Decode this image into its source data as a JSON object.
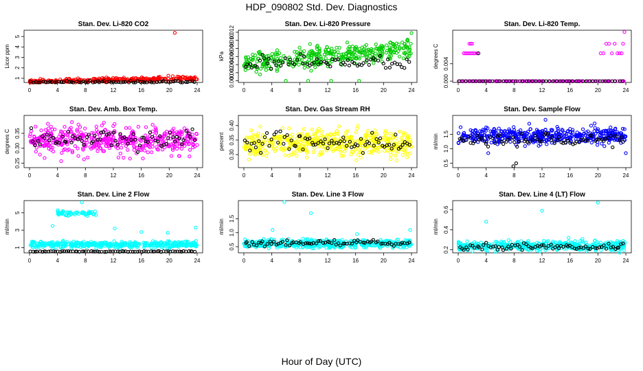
{
  "title": "HDP_090802  Std. Dev. Diagnostics",
  "xlabel": "Hour of Day (UTC)",
  "chart_data": [
    {
      "type": "scatter",
      "title": "Stan. Dev. Li-820 CO2",
      "ylabel": "Licor ppm",
      "xlim": [
        0,
        24
      ],
      "xticks": [
        0,
        4,
        8,
        12,
        16,
        20,
        24
      ],
      "xtick_labels": [
        "0",
        "4",
        "8",
        "12",
        "16",
        "20",
        "24"
      ],
      "ylim": [
        0.6,
        5.6
      ],
      "yticks": [
        1,
        2,
        3,
        4,
        5
      ],
      "ytick_labels": [
        "1",
        "2",
        "3",
        "4",
        "5"
      ],
      "color": "#ff0000",
      "cloud": {
        "base": 0.7,
        "spread": 0.2,
        "trend": 0.15,
        "n": 300
      },
      "outliers": [
        [
          20.8,
          5.35
        ],
        [
          18.5,
          1.1
        ],
        [
          20.5,
          1.2
        ],
        [
          22.0,
          1.15
        ]
      ],
      "black": {
        "base": 0.65,
        "spread": 0.12,
        "n": 70
      }
    },
    {
      "type": "scatter",
      "title": "Stan. Dev. Li-820 Pressure",
      "ylabel": "kPa",
      "xlim": [
        0,
        24
      ],
      "xticks": [
        0,
        4,
        8,
        12,
        16,
        20,
        24
      ],
      "xtick_labels": [
        "0",
        "4",
        "8",
        "12",
        "16",
        "20",
        "24"
      ],
      "ylim": [
        -0.0004,
        0.0125
      ],
      "yticks": [
        0,
        0.002,
        0.004,
        0.006,
        0.008,
        0.01,
        0.012
      ],
      "ytick_labels": [
        "0.000",
        "0.002",
        "0.004",
        "0.006",
        "0.008",
        "0.010",
        "0.012"
      ],
      "color": "#00cc00",
      "cloud": {
        "base": 0.0043,
        "spread": 0.0023,
        "trend": 0.0018,
        "n": 380
      },
      "outliers": [
        [
          24,
          0.0118
        ],
        [
          9.2,
          0.0
        ],
        [
          12.5,
          0.0
        ],
        [
          16.5,
          0.0
        ],
        [
          6,
          0.0
        ],
        [
          21,
          0.0095
        ]
      ],
      "black": {
        "base": 0.0045,
        "spread": 0.0015,
        "n": 70
      }
    },
    {
      "type": "scatter",
      "title": "Stan. Dev. Li-820 Temp.",
      "ylabel": "degrees C",
      "xlim": [
        0,
        24
      ],
      "xticks": [
        0,
        4,
        8,
        12,
        16,
        20,
        24
      ],
      "xtick_labels": [
        "0",
        "4",
        "8",
        "12",
        "16",
        "20",
        "24"
      ],
      "ylim": [
        -0.0003,
        0.0117
      ],
      "yticks": [
        0,
        0.004
      ],
      "ytick_labels": [
        "0.000",
        "0.004"
      ],
      "color": "#ff00ff",
      "cloud": {
        "base": 0.0,
        "spread": 0.0,
        "trend": 0,
        "n": 120
      },
      "outliers": [
        [
          0.8,
          0.0064
        ],
        [
          1.0,
          0.0064
        ],
        [
          1.2,
          0.0064
        ],
        [
          1.4,
          0.0064
        ],
        [
          1.6,
          0.0064
        ],
        [
          1.8,
          0.0064
        ],
        [
          2.0,
          0.0064
        ],
        [
          2.2,
          0.0064
        ],
        [
          2.4,
          0.0064
        ],
        [
          1.6,
          0.0086
        ],
        [
          1.8,
          0.0086
        ],
        [
          2.0,
          0.0086
        ],
        [
          2.7,
          0.0064
        ],
        [
          20.4,
          0.0064
        ],
        [
          20.8,
          0.0064
        ],
        [
          21.2,
          0.0086
        ],
        [
          21.6,
          0.0086
        ],
        [
          22.0,
          0.0064
        ],
        [
          22.4,
          0.0086
        ],
        [
          22.8,
          0.0064
        ],
        [
          23.1,
          0.0064
        ],
        [
          23.4,
          0.0064
        ],
        [
          23.6,
          0.0086
        ],
        [
          23.8,
          0.0113
        ]
      ],
      "black": {
        "base": 0.0,
        "spread": 0.0,
        "n": 50
      },
      "black_extra": [
        [
          2.9,
          0.0064
        ]
      ]
    },
    {
      "type": "scatter",
      "title": "Stan. Dev. Amb. Box Temp.",
      "ylabel": "degrees C",
      "xlim": [
        0,
        24
      ],
      "xticks": [
        0,
        4,
        8,
        12,
        16,
        20,
        24
      ],
      "xtick_labels": [
        "0",
        "4",
        "8",
        "12",
        "16",
        "20",
        "24"
      ],
      "ylim": [
        0.235,
        0.41
      ],
      "yticks": [
        0.25,
        0.3,
        0.35
      ],
      "ytick_labels": [
        "0.25",
        "0.30",
        "0.35"
      ],
      "color": "#ff00ff",
      "cloud": {
        "base": 0.325,
        "spread": 0.045,
        "trend": 0,
        "n": 480
      },
      "outliers": [],
      "black": {
        "base": 0.33,
        "spread": 0.03,
        "n": 75
      }
    },
    {
      "type": "scatter",
      "title": "Stan. Dev. Gas Stream RH",
      "ylabel": "percent",
      "xlim": [
        0,
        24
      ],
      "xticks": [
        0,
        4,
        8,
        12,
        16,
        20,
        24
      ],
      "xtick_labels": [
        "0",
        "4",
        "8",
        "12",
        "16",
        "20",
        "24"
      ],
      "ylim": [
        0.255,
        0.435
      ],
      "yticks": [
        0.3,
        0.35,
        0.4
      ],
      "ytick_labels": [
        "0.30",
        "0.35",
        "0.40"
      ],
      "color": "#ffff00",
      "cloud": {
        "base": 0.34,
        "spread": 0.045,
        "trend": 0,
        "n": 480
      },
      "outliers": [],
      "black": {
        "base": 0.34,
        "spread": 0.03,
        "n": 75
      }
    },
    {
      "type": "scatter",
      "title": "Stan. Dev. Sample Flow",
      "ylabel": "ml/min",
      "xlim": [
        0,
        24
      ],
      "xticks": [
        0,
        4,
        8,
        12,
        16,
        20,
        24
      ],
      "xtick_labels": [
        "0",
        "4",
        "8",
        "12",
        "16",
        "20",
        "24"
      ],
      "ylim": [
        0.35,
        2.15
      ],
      "yticks": [
        0.5,
        1.0,
        1.5
      ],
      "ytick_labels": [
        "0.5",
        "1.0",
        "1.5"
      ],
      "color": "#0000ff",
      "cloud": {
        "base": 1.45,
        "spread": 0.28,
        "trend": 0,
        "n": 480
      },
      "outliers": [
        [
          24,
          0.85
        ],
        [
          4.3,
          0.85
        ],
        [
          12.5,
          2.0
        ]
      ],
      "black": {
        "base": 1.3,
        "spread": 0.2,
        "n": 75
      },
      "black_extra": [
        [
          7.9,
          0.4
        ],
        [
          8.3,
          0.5
        ]
      ]
    },
    {
      "type": "scatter",
      "title": "Stan. Dev. Line 2 Flow",
      "ylabel": "ml/min",
      "xlim": [
        0,
        24
      ],
      "xticks": [
        0,
        4,
        8,
        12,
        16,
        20,
        24
      ],
      "xtick_labels": [
        "0",
        "4",
        "8",
        "12",
        "16",
        "20",
        "24"
      ],
      "ylim": [
        0.4,
        6.4
      ],
      "yticks": [
        1,
        3,
        5
      ],
      "ytick_labels": [
        "1",
        "3",
        "5"
      ],
      "color": "#00ffff",
      "cloud": {
        "base": 1.35,
        "spread": 0.35,
        "trend": 0,
        "n": 420
      },
      "outliers": [
        [
          3.3,
          3.5
        ],
        [
          12.2,
          3.2
        ],
        [
          16.0,
          2.8
        ],
        [
          19.8,
          2.7
        ],
        [
          23.8,
          3.3
        ],
        [
          7.5,
          6.2
        ]
      ],
      "cluster": {
        "x0": 4.0,
        "x1": 9.5,
        "base": 4.9,
        "spread": 0.5,
        "n": 60
      },
      "black": {
        "base": 0.55,
        "spread": 0.06,
        "n": 75
      }
    },
    {
      "type": "scatter",
      "title": "Stan. Dev. Line 3 Flow",
      "ylabel": "ml/min",
      "xlim": [
        0,
        24
      ],
      "xticks": [
        0,
        4,
        8,
        12,
        16,
        20,
        24
      ],
      "xtick_labels": [
        "0",
        "4",
        "8",
        "12",
        "16",
        "20",
        "24"
      ],
      "ylim": [
        0.28,
        2.15
      ],
      "yticks": [
        0.5,
        1.0,
        1.5
      ],
      "ytick_labels": [
        "0.5",
        "1.0",
        "1.5"
      ],
      "color": "#00ffff",
      "cloud": {
        "base": 0.6,
        "spread": 0.14,
        "trend": 0,
        "n": 460
      },
      "outliers": [
        [
          5.8,
          2.1
        ],
        [
          9.6,
          1.7
        ],
        [
          4.1,
          1.1
        ],
        [
          23.8,
          1.1
        ],
        [
          16.2,
          0.95
        ]
      ],
      "black": {
        "base": 0.63,
        "spread": 0.1,
        "n": 75
      }
    },
    {
      "type": "scatter",
      "title": "Stan. Dev. Line 4 (LT) Flow",
      "ylabel": "ml/min",
      "xlim": [
        0,
        24
      ],
      "xticks": [
        0,
        4,
        8,
        12,
        16,
        20,
        24
      ],
      "xtick_labels": [
        "0",
        "4",
        "8",
        "12",
        "16",
        "20",
        "24"
      ],
      "ylim": [
        0.17,
        0.69
      ],
      "yticks": [
        0.2,
        0.4,
        0.6
      ],
      "ytick_labels": [
        "0.2",
        "0.4",
        "0.6"
      ],
      "color": "#00ffff",
      "cloud": {
        "base": 0.24,
        "spread": 0.045,
        "trend": 0,
        "n": 460
      },
      "outliers": [
        [
          4.0,
          0.48
        ],
        [
          12.0,
          0.59
        ],
        [
          20.0,
          0.67
        ],
        [
          15.8,
          0.32
        ]
      ],
      "black": {
        "base": 0.23,
        "spread": 0.035,
        "n": 75
      }
    }
  ]
}
